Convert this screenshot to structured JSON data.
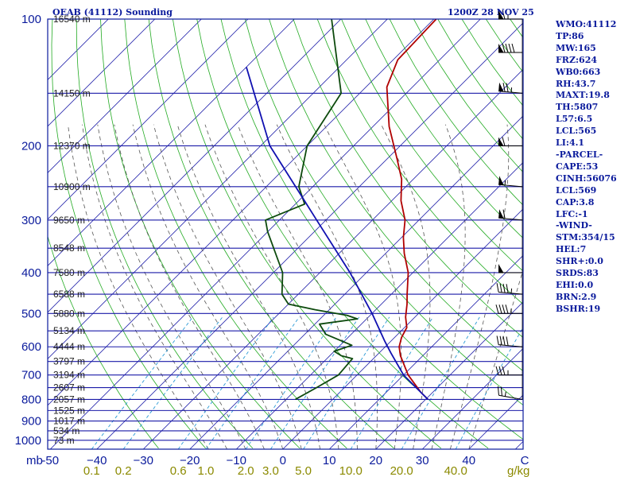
{
  "header": {
    "station": "OEAB (41112) Sounding",
    "time": "1200Z 28 NOV 25"
  },
  "indices": [
    "WMO:41112",
    "TP:86",
    "MW:165",
    "FRZ:624",
    "WB0:663",
    "RH:43.7",
    "MAXT:19.8",
    "TH:5807",
    "L57:6.5",
    "LCL:565",
    "LI:4.1",
    "-PARCEL-",
    "CAPE:53",
    "CINH:56076",
    "LCL:569",
    "CAP:3.8",
    "LFC:-1",
    "-WIND-",
    "STM:354/15",
    "HEL:7",
    "SHR+:0.0",
    "SRDS:83",
    "EHI:0.0",
    "BRN:2.9",
    "BSHR:19"
  ],
  "colors": {
    "isobar": "#1a1aa8",
    "frame": "#0a1a9c",
    "temperature": "#b00000",
    "dewpoint": "#0d4a0d",
    "parcel": "#1010b0",
    "dry_adiabat": "#22aa22",
    "moist_adiabat": "#555555",
    "mixing_ratio": "#2a9ad6",
    "mixing_label": "#8b8a00",
    "height_label": "#222222",
    "wind_barb": "#000000"
  },
  "chart_data": {
    "type": "line",
    "subtype": "skew-t log-p sounding",
    "pressure_unit_label": "mb",
    "temperature_unit_label": "C",
    "mixing_ratio_unit_label": "g/kg",
    "pressure_range_hpa": [
      100,
      1050
    ],
    "temperature_range_c": [
      -50,
      50
    ],
    "pressure_ticks": [
      100,
      200,
      300,
      400,
      500,
      600,
      700,
      800,
      900,
      1000
    ],
    "temperature_ticks": [
      -50,
      -40,
      -30,
      -20,
      -10,
      0,
      10,
      20,
      30,
      40
    ],
    "temperature_tick_labels": [
      "-50",
      "−40",
      "−30",
      "−20",
      "−10",
      "0",
      "10",
      "20",
      "30",
      "40"
    ],
    "mixing_ratio_ticks": [
      "0.1",
      "0.2",
      "0.6",
      "1.0",
      "2.0",
      "3.0",
      "5.0",
      "10.0",
      "20.0",
      "40.0"
    ],
    "height_levels": [
      {
        "p": 100,
        "label": "16540 m"
      },
      {
        "p": 150,
        "label": "14150 m"
      },
      {
        "p": 200,
        "label": "12370 m"
      },
      {
        "p": 250,
        "label": "10900 m"
      },
      {
        "p": 300,
        "label": "9650 m"
      },
      {
        "p": 350,
        "label": "8548 m"
      },
      {
        "p": 400,
        "label": "7580 m"
      },
      {
        "p": 450,
        "label": "6588 m"
      },
      {
        "p": 500,
        "label": "5880 m"
      },
      {
        "p": 550,
        "label": "5134 m"
      },
      {
        "p": 600,
        "label": "4444 m"
      },
      {
        "p": 650,
        "label": "3797 m"
      },
      {
        "p": 700,
        "label": "3194 m"
      },
      {
        "p": 750,
        "label": "2607 m"
      },
      {
        "p": 800,
        "label": "2057 m"
      },
      {
        "p": 850,
        "label": "1525 m"
      },
      {
        "p": 900,
        "label": "1017 m"
      },
      {
        "p": 950,
        "label": "534 m"
      },
      {
        "p": 1000,
        "label": "73 m"
      }
    ],
    "series": [
      {
        "key": "temperature",
        "points": [
          {
            "p": 800,
            "t": 20.5
          },
          {
            "p": 770,
            "t": 17.5
          },
          {
            "p": 700,
            "t": 11.0
          },
          {
            "p": 630,
            "t": 5.2
          },
          {
            "p": 600,
            "t": 3.0
          },
          {
            "p": 570,
            "t": 1.5
          },
          {
            "p": 540,
            "t": 0.5
          },
          {
            "p": 510,
            "t": -2.0
          },
          {
            "p": 475,
            "t": -4.5
          },
          {
            "p": 450,
            "t": -6.6
          },
          {
            "p": 400,
            "t": -11.0
          },
          {
            "p": 360,
            "t": -16.0
          },
          {
            "p": 330,
            "t": -19.6
          },
          {
            "p": 300,
            "t": -23.0
          },
          {
            "p": 270,
            "t": -28.0
          },
          {
            "p": 240,
            "t": -32.5
          },
          {
            "p": 215,
            "t": -37.8
          },
          {
            "p": 180,
            "t": -46.5
          },
          {
            "p": 145,
            "t": -55.5
          },
          {
            "p": 125,
            "t": -59.0
          },
          {
            "p": 100,
            "t": -59.5
          }
        ]
      },
      {
        "key": "dewpoint",
        "points": [
          {
            "p": 800,
            "t": -8.0
          },
          {
            "p": 750,
            "t": -6.0
          },
          {
            "p": 700,
            "t": -4.0
          },
          {
            "p": 640,
            "t": -4.5
          },
          {
            "p": 630,
            "t": -7.5
          },
          {
            "p": 615,
            "t": -10.0
          },
          {
            "p": 595,
            "t": -7.5
          },
          {
            "p": 560,
            "t": -15.5
          },
          {
            "p": 530,
            "t": -19.0
          },
          {
            "p": 515,
            "t": -12.0
          },
          {
            "p": 505,
            "t": -15.0
          },
          {
            "p": 490,
            "t": -23.0
          },
          {
            "p": 475,
            "t": -30.0
          },
          {
            "p": 450,
            "t": -33.5
          },
          {
            "p": 400,
            "t": -38.0
          },
          {
            "p": 320,
            "t": -50.0
          },
          {
            "p": 300,
            "t": -53.0
          },
          {
            "p": 275,
            "t": -48.0
          },
          {
            "p": 250,
            "t": -53.0
          },
          {
            "p": 200,
            "t": -60.0
          },
          {
            "p": 150,
            "t": -64.0
          },
          {
            "p": 100,
            "t": -82.0
          }
        ]
      },
      {
        "key": "parcel",
        "points": [
          {
            "p": 800,
            "t": 20.5
          },
          {
            "p": 700,
            "t": 10.0
          },
          {
            "p": 620,
            "t": 2.5
          },
          {
            "p": 580,
            "t": -1.5
          },
          {
            "p": 500,
            "t": -10.0
          },
          {
            "p": 400,
            "t": -23.5
          },
          {
            "p": 300,
            "t": -42.0
          },
          {
            "p": 200,
            "t": -68.0
          },
          {
            "p": 130,
            "t": -90.0
          }
        ]
      }
    ],
    "wind_barbs": [
      {
        "p": 800,
        "dir": 280,
        "spd": 25
      },
      {
        "p": 700,
        "dir": 270,
        "spd": 35
      },
      {
        "p": 600,
        "dir": 275,
        "spd": 40
      },
      {
        "p": 500,
        "dir": 270,
        "spd": 45
      },
      {
        "p": 450,
        "dir": 275,
        "spd": 45
      },
      {
        "p": 400,
        "dir": 270,
        "spd": 50
      },
      {
        "p": 300,
        "dir": 275,
        "spd": 60
      },
      {
        "p": 250,
        "dir": 275,
        "spd": 55
      },
      {
        "p": 200,
        "dir": 270,
        "spd": 60
      },
      {
        "p": 150,
        "dir": 275,
        "spd": 75
      },
      {
        "p": 120,
        "dir": 270,
        "spd": 90
      },
      {
        "p": 100,
        "dir": 270,
        "spd": 65
      }
    ],
    "grid": true
  }
}
